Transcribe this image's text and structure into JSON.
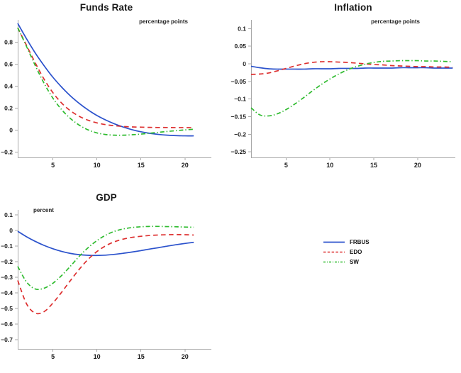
{
  "page": {
    "background": "#ffffff"
  },
  "legend": {
    "items": [
      {
        "label": "FRBUS",
        "color": "#2b52cc",
        "style": "solid"
      },
      {
        "label": "EDO",
        "color": "#dd2f2f",
        "style": "dashed"
      },
      {
        "label": "SW",
        "color": "#2fbb2f",
        "style": "dashdot"
      }
    ]
  },
  "colors": {
    "axis": "#a9a9a9",
    "tick_text": "#1a1a1a"
  },
  "chart_data": [
    {
      "id": "funds-rate",
      "type": "line",
      "title": "Funds Rate",
      "unit_label": "percentage points",
      "unit_position": "top-right",
      "x_start": 1,
      "xticks": [
        5,
        10,
        15,
        20
      ],
      "yticks": [
        -0.2,
        0,
        0.2,
        0.4,
        0.6,
        0.8
      ],
      "xlim": [
        1,
        23
      ],
      "ylim": [
        -0.248,
        1.002
      ],
      "grid": false,
      "series": [
        {
          "name": "FRBUS",
          "color": "#2b52cc",
          "style": "solid",
          "values": [
            0.97,
            0.83,
            0.7,
            0.585,
            0.48,
            0.39,
            0.31,
            0.242,
            0.183,
            0.133,
            0.092,
            0.057,
            0.028,
            0.004,
            -0.015,
            -0.029,
            -0.039,
            -0.046,
            -0.05,
            -0.052,
            -0.052
          ]
        },
        {
          "name": "EDO",
          "color": "#dd2f2f",
          "style": "dashed",
          "values": [
            0.93,
            0.77,
            0.61,
            0.462,
            0.34,
            0.245,
            0.175,
            0.125,
            0.09,
            0.066,
            0.05,
            0.04,
            0.033,
            0.029,
            0.027,
            0.025,
            0.024,
            0.024,
            0.023,
            0.023,
            0.022
          ]
        },
        {
          "name": "SW",
          "color": "#2fbb2f",
          "style": "dashdot",
          "values": [
            0.93,
            0.76,
            0.585,
            0.425,
            0.29,
            0.185,
            0.105,
            0.045,
            0.002,
            -0.025,
            -0.04,
            -0.046,
            -0.046,
            -0.042,
            -0.036,
            -0.028,
            -0.02,
            -0.012,
            -0.005,
            0.002,
            0.008
          ]
        }
      ]
    },
    {
      "id": "inflation",
      "type": "line",
      "title": "Inflation",
      "unit_label": "percentage points",
      "unit_position": "top-right",
      "x_start": 1,
      "xticks": [
        5,
        10,
        15,
        20
      ],
      "yticks": [
        -0.25,
        -0.2,
        -0.15,
        -0.1,
        -0.05,
        0,
        0.05,
        0.1
      ],
      "xlim": [
        1,
        24.3
      ],
      "ylim": [
        -0.266,
        0.125
      ],
      "grid": false,
      "series": [
        {
          "name": "FRBUS",
          "color": "#2b52cc",
          "style": "solid",
          "values": [
            -0.007,
            -0.011,
            -0.014,
            -0.015,
            -0.015,
            -0.015,
            -0.015,
            -0.014,
            -0.014,
            -0.014,
            -0.013,
            -0.013,
            -0.013,
            -0.012,
            -0.012,
            -0.012,
            -0.012,
            -0.011,
            -0.011,
            -0.011,
            -0.011,
            -0.012,
            -0.012,
            -0.012
          ]
        },
        {
          "name": "EDO",
          "color": "#dd2f2f",
          "style": "dashed",
          "values": [
            -0.03,
            -0.029,
            -0.026,
            -0.02,
            -0.013,
            -0.006,
            0.0,
            0.004,
            0.006,
            0.006,
            0.005,
            0.004,
            0.002,
            0.0,
            -0.002,
            -0.003,
            -0.005,
            -0.006,
            -0.007,
            -0.008,
            -0.008,
            -0.009,
            -0.009,
            -0.01
          ]
        },
        {
          "name": "SW",
          "color": "#2fbb2f",
          "style": "dashdot",
          "values": [
            -0.125,
            -0.145,
            -0.148,
            -0.142,
            -0.13,
            -0.114,
            -0.096,
            -0.077,
            -0.059,
            -0.043,
            -0.029,
            -0.017,
            -0.008,
            -0.001,
            0.004,
            0.007,
            0.008,
            0.009,
            0.009,
            0.009,
            0.008,
            0.008,
            0.007,
            0.006
          ]
        }
      ]
    },
    {
      "id": "gdp",
      "type": "line",
      "title": "GDP",
      "unit_label": "percent",
      "unit_position": "top-left",
      "x_start": 1,
      "xticks": [
        5,
        10,
        15,
        20
      ],
      "yticks": [
        -0.7,
        -0.6,
        -0.5,
        -0.4,
        -0.3,
        -0.2,
        -0.1,
        0,
        0.1
      ],
      "xlim": [
        1,
        23
      ],
      "ylim": [
        -0.759,
        0.132
      ],
      "grid": false,
      "series": [
        {
          "name": "FRBUS",
          "color": "#2b52cc",
          "style": "solid",
          "values": [
            -0.005,
            -0.04,
            -0.07,
            -0.096,
            -0.117,
            -0.134,
            -0.147,
            -0.155,
            -0.159,
            -0.16,
            -0.158,
            -0.153,
            -0.146,
            -0.138,
            -0.129,
            -0.119,
            -0.11,
            -0.1,
            -0.091,
            -0.083,
            -0.076
          ]
        },
        {
          "name": "EDO",
          "color": "#dd2f2f",
          "style": "dashed",
          "values": [
            -0.32,
            -0.47,
            -0.53,
            -0.52,
            -0.465,
            -0.395,
            -0.32,
            -0.248,
            -0.185,
            -0.135,
            -0.098,
            -0.072,
            -0.055,
            -0.044,
            -0.037,
            -0.032,
            -0.029,
            -0.027,
            -0.026,
            -0.027,
            -0.029
          ]
        },
        {
          "name": "SW",
          "color": "#2fbb2f",
          "style": "dashdot",
          "values": [
            -0.23,
            -0.33,
            -0.375,
            -0.37,
            -0.338,
            -0.288,
            -0.228,
            -0.165,
            -0.11,
            -0.065,
            -0.03,
            -0.005,
            0.01,
            0.019,
            0.024,
            0.026,
            0.026,
            0.025,
            0.024,
            0.022,
            0.021
          ]
        }
      ]
    }
  ]
}
